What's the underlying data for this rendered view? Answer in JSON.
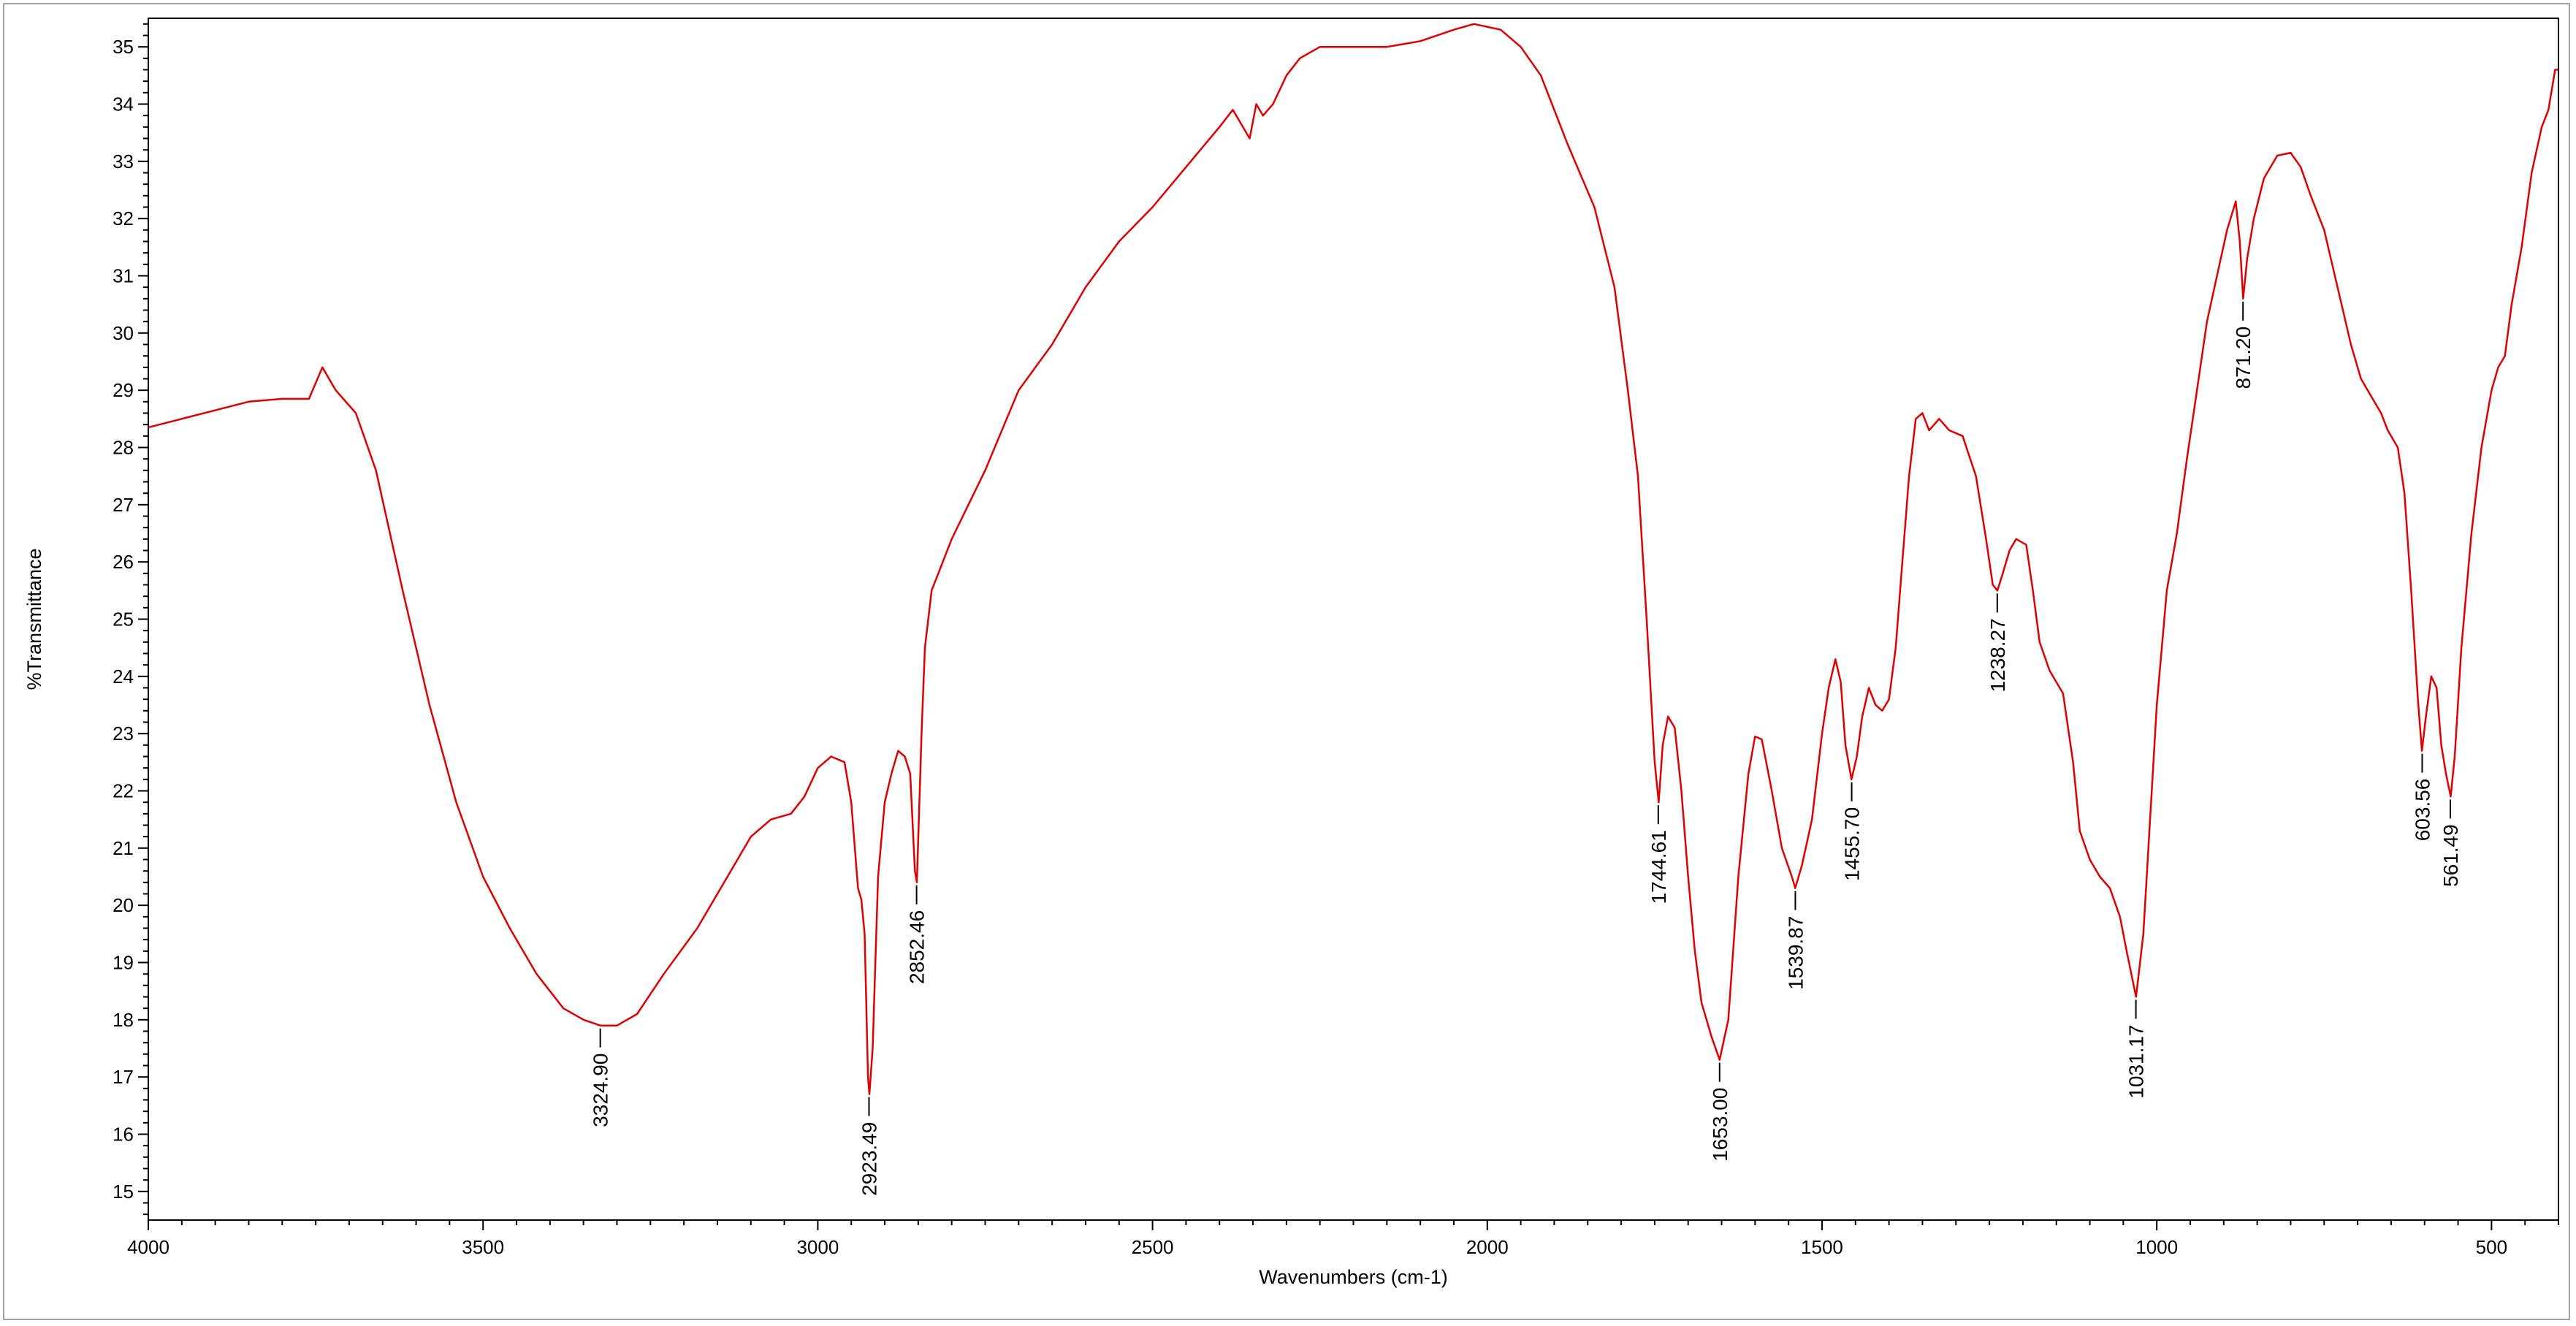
{
  "chart_data": {
    "type": "line",
    "title": "",
    "xlabel": "Wavenumbers (cm-1)",
    "ylabel": "%Transmittance",
    "xlim": [
      4000,
      400
    ],
    "ylim": [
      14.5,
      35.5
    ],
    "x_reversed": true,
    "grid": false,
    "x_ticks": [
      4000,
      3500,
      3000,
      2500,
      2000,
      1500,
      1000,
      500
    ],
    "y_ticks": [
      15,
      16,
      17,
      18,
      19,
      20,
      21,
      22,
      23,
      24,
      25,
      26,
      27,
      28,
      29,
      30,
      31,
      32,
      33,
      34,
      35
    ],
    "series": [
      {
        "color": "#e00000",
        "points": [
          [
            4000,
            28.35
          ],
          [
            3950,
            28.5
          ],
          [
            3900,
            28.65
          ],
          [
            3850,
            28.8
          ],
          [
            3800,
            28.85
          ],
          [
            3760,
            28.85
          ],
          [
            3740,
            29.4
          ],
          [
            3720,
            29.0
          ],
          [
            3690,
            28.6
          ],
          [
            3660,
            27.6
          ],
          [
            3620,
            25.5
          ],
          [
            3580,
            23.5
          ],
          [
            3540,
            21.8
          ],
          [
            3500,
            20.5
          ],
          [
            3460,
            19.6
          ],
          [
            3420,
            18.8
          ],
          [
            3380,
            18.2
          ],
          [
            3350,
            18.0
          ],
          [
            3325,
            17.9
          ],
          [
            3300,
            17.9
          ],
          [
            3270,
            18.1
          ],
          [
            3230,
            18.8
          ],
          [
            3180,
            19.6
          ],
          [
            3130,
            20.6
          ],
          [
            3100,
            21.2
          ],
          [
            3070,
            21.5
          ],
          [
            3040,
            21.6
          ],
          [
            3020,
            21.9
          ],
          [
            3000,
            22.4
          ],
          [
            2980,
            22.6
          ],
          [
            2960,
            22.5
          ],
          [
            2950,
            21.8
          ],
          [
            2940,
            20.3
          ],
          [
            2935,
            20.1
          ],
          [
            2930,
            19.5
          ],
          [
            2925,
            17.0
          ],
          [
            2923,
            16.7
          ],
          [
            2918,
            17.5
          ],
          [
            2910,
            20.5
          ],
          [
            2900,
            21.8
          ],
          [
            2890,
            22.3
          ],
          [
            2880,
            22.7
          ],
          [
            2870,
            22.6
          ],
          [
            2862,
            22.3
          ],
          [
            2855,
            20.6
          ],
          [
            2852,
            20.4
          ],
          [
            2845,
            23.0
          ],
          [
            2840,
            24.5
          ],
          [
            2830,
            25.5
          ],
          [
            2800,
            26.4
          ],
          [
            2750,
            27.6
          ],
          [
            2700,
            29.0
          ],
          [
            2650,
            29.8
          ],
          [
            2600,
            30.8
          ],
          [
            2550,
            31.6
          ],
          [
            2500,
            32.2
          ],
          [
            2450,
            32.9
          ],
          [
            2400,
            33.6
          ],
          [
            2380,
            33.9
          ],
          [
            2365,
            33.6
          ],
          [
            2355,
            33.4
          ],
          [
            2345,
            34.0
          ],
          [
            2335,
            33.8
          ],
          [
            2320,
            34.0
          ],
          [
            2300,
            34.5
          ],
          [
            2280,
            34.8
          ],
          [
            2250,
            35.0
          ],
          [
            2200,
            35.0
          ],
          [
            2150,
            35.0
          ],
          [
            2100,
            35.1
          ],
          [
            2050,
            35.3
          ],
          [
            2020,
            35.4
          ],
          [
            1980,
            35.3
          ],
          [
            1950,
            35.0
          ],
          [
            1920,
            34.5
          ],
          [
            1880,
            33.3
          ],
          [
            1840,
            32.2
          ],
          [
            1810,
            30.8
          ],
          [
            1790,
            29.0
          ],
          [
            1775,
            27.5
          ],
          [
            1762,
            25.0
          ],
          [
            1750,
            22.5
          ],
          [
            1744,
            21.8
          ],
          [
            1738,
            22.8
          ],
          [
            1730,
            23.3
          ],
          [
            1720,
            23.1
          ],
          [
            1710,
            22.0
          ],
          [
            1700,
            20.5
          ],
          [
            1690,
            19.2
          ],
          [
            1680,
            18.3
          ],
          [
            1665,
            17.7
          ],
          [
            1653,
            17.3
          ],
          [
            1640,
            18.0
          ],
          [
            1625,
            20.5
          ],
          [
            1610,
            22.3
          ],
          [
            1600,
            22.95
          ],
          [
            1590,
            22.9
          ],
          [
            1575,
            22.0
          ],
          [
            1560,
            21.0
          ],
          [
            1545,
            20.5
          ],
          [
            1540,
            20.3
          ],
          [
            1530,
            20.7
          ],
          [
            1515,
            21.5
          ],
          [
            1500,
            23.0
          ],
          [
            1490,
            23.8
          ],
          [
            1480,
            24.3
          ],
          [
            1472,
            23.9
          ],
          [
            1465,
            22.8
          ],
          [
            1456,
            22.2
          ],
          [
            1448,
            22.6
          ],
          [
            1440,
            23.3
          ],
          [
            1430,
            23.8
          ],
          [
            1420,
            23.5
          ],
          [
            1410,
            23.4
          ],
          [
            1400,
            23.6
          ],
          [
            1390,
            24.5
          ],
          [
            1380,
            26.0
          ],
          [
            1370,
            27.5
          ],
          [
            1360,
            28.5
          ],
          [
            1350,
            28.6
          ],
          [
            1340,
            28.3
          ],
          [
            1325,
            28.5
          ],
          [
            1310,
            28.3
          ],
          [
            1290,
            28.2
          ],
          [
            1270,
            27.5
          ],
          [
            1255,
            26.4
          ],
          [
            1245,
            25.6
          ],
          [
            1238,
            25.5
          ],
          [
            1230,
            25.8
          ],
          [
            1220,
            26.2
          ],
          [
            1210,
            26.4
          ],
          [
            1195,
            26.3
          ],
          [
            1185,
            25.5
          ],
          [
            1175,
            24.6
          ],
          [
            1160,
            24.1
          ],
          [
            1140,
            23.7
          ],
          [
            1125,
            22.5
          ],
          [
            1115,
            21.3
          ],
          [
            1100,
            20.8
          ],
          [
            1085,
            20.5
          ],
          [
            1070,
            20.3
          ],
          [
            1055,
            19.8
          ],
          [
            1045,
            19.2
          ],
          [
            1031,
            18.4
          ],
          [
            1020,
            19.5
          ],
          [
            1010,
            21.5
          ],
          [
            1000,
            23.5
          ],
          [
            985,
            25.5
          ],
          [
            970,
            26.5
          ],
          [
            955,
            27.8
          ],
          [
            940,
            29.0
          ],
          [
            925,
            30.2
          ],
          [
            910,
            31.0
          ],
          [
            895,
            31.8
          ],
          [
            882,
            32.3
          ],
          [
            876,
            31.6
          ],
          [
            871,
            30.6
          ],
          [
            865,
            31.3
          ],
          [
            855,
            32.0
          ],
          [
            840,
            32.7
          ],
          [
            820,
            33.1
          ],
          [
            800,
            33.15
          ],
          [
            785,
            32.9
          ],
          [
            770,
            32.4
          ],
          [
            750,
            31.8
          ],
          [
            730,
            30.8
          ],
          [
            710,
            29.8
          ],
          [
            695,
            29.2
          ],
          [
            680,
            28.9
          ],
          [
            665,
            28.6
          ],
          [
            655,
            28.3
          ],
          [
            640,
            28.0
          ],
          [
            630,
            27.2
          ],
          [
            620,
            25.5
          ],
          [
            610,
            23.6
          ],
          [
            604,
            22.7
          ],
          [
            598,
            23.3
          ],
          [
            590,
            24.0
          ],
          [
            582,
            23.8
          ],
          [
            575,
            22.8
          ],
          [
            568,
            22.3
          ],
          [
            561,
            21.9
          ],
          [
            555,
            22.6
          ],
          [
            545,
            24.5
          ],
          [
            530,
            26.5
          ],
          [
            515,
            28.0
          ],
          [
            500,
            29.0
          ],
          [
            490,
            29.4
          ],
          [
            480,
            29.6
          ],
          [
            470,
            30.5
          ],
          [
            455,
            31.5
          ],
          [
            440,
            32.8
          ],
          [
            425,
            33.6
          ],
          [
            415,
            33.9
          ],
          [
            405,
            34.6
          ],
          [
            400,
            34.6
          ]
        ]
      }
    ],
    "peak_labels": [
      {
        "text": "3324.90",
        "x": 3324.9,
        "y": 17.9
      },
      {
        "text": "2923.49",
        "x": 2923.49,
        "y": 16.7
      },
      {
        "text": "2852.46",
        "x": 2852.46,
        "y": 20.4
      },
      {
        "text": "1744.61",
        "x": 1744.61,
        "y": 21.8
      },
      {
        "text": "1653.00",
        "x": 1653.0,
        "y": 17.3
      },
      {
        "text": "1539.87",
        "x": 1539.87,
        "y": 20.3
      },
      {
        "text": "1455.70",
        "x": 1455.7,
        "y": 22.2
      },
      {
        "text": "1238.27",
        "x": 1238.27,
        "y": 25.5
      },
      {
        "text": "1031.17",
        "x": 1031.17,
        "y": 18.4
      },
      {
        "text": "871.20",
        "x": 871.2,
        "y": 30.6
      },
      {
        "text": "603.56",
        "x": 603.56,
        "y": 22.7
      },
      {
        "text": "561.49",
        "x": 561.49,
        "y": 21.9
      }
    ]
  }
}
